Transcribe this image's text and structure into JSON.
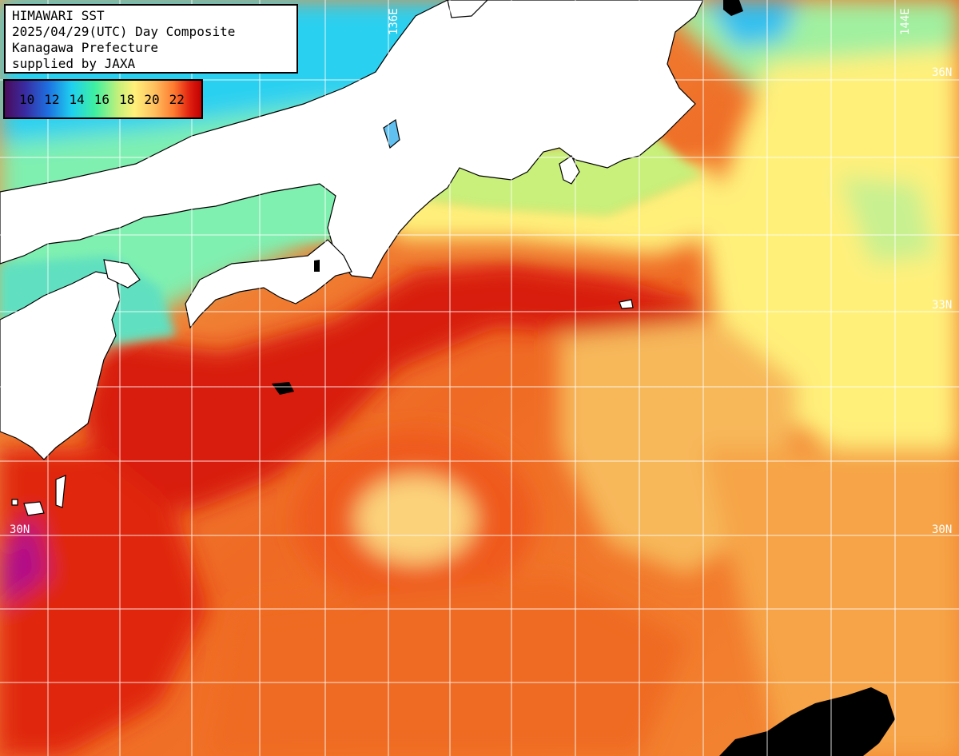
{
  "title_box": {
    "line1": "HIMAWARI SST",
    "line2": "2025/04/29(UTC) Day Composite",
    "line3": "Kanagawa Prefecture",
    "line4": "supplied by JAXA"
  },
  "legend": {
    "ticks": [
      "10",
      "12",
      "14",
      "16",
      "18",
      "20",
      "22"
    ],
    "colors": [
      "#4a0b5a",
      "#1e6fe0",
      "#1fd0f0",
      "#3ff0a0",
      "#fff07a",
      "#ff7a30",
      "#c00000"
    ]
  },
  "grid_labels": {
    "lon_136": "136E",
    "lon_144": "144E",
    "lat_36": "36N",
    "lat_33": "33N",
    "lat_30_left": "30N",
    "lat_30_right": "30N"
  },
  "colors": {
    "land": "#ffffff",
    "coast": "#000000",
    "warm_core": "#d81e0c",
    "warm": "#ef5a1a",
    "mid": "#f7a44a",
    "cool": "#8ff0a8",
    "cold": "#2bd0f0"
  }
}
